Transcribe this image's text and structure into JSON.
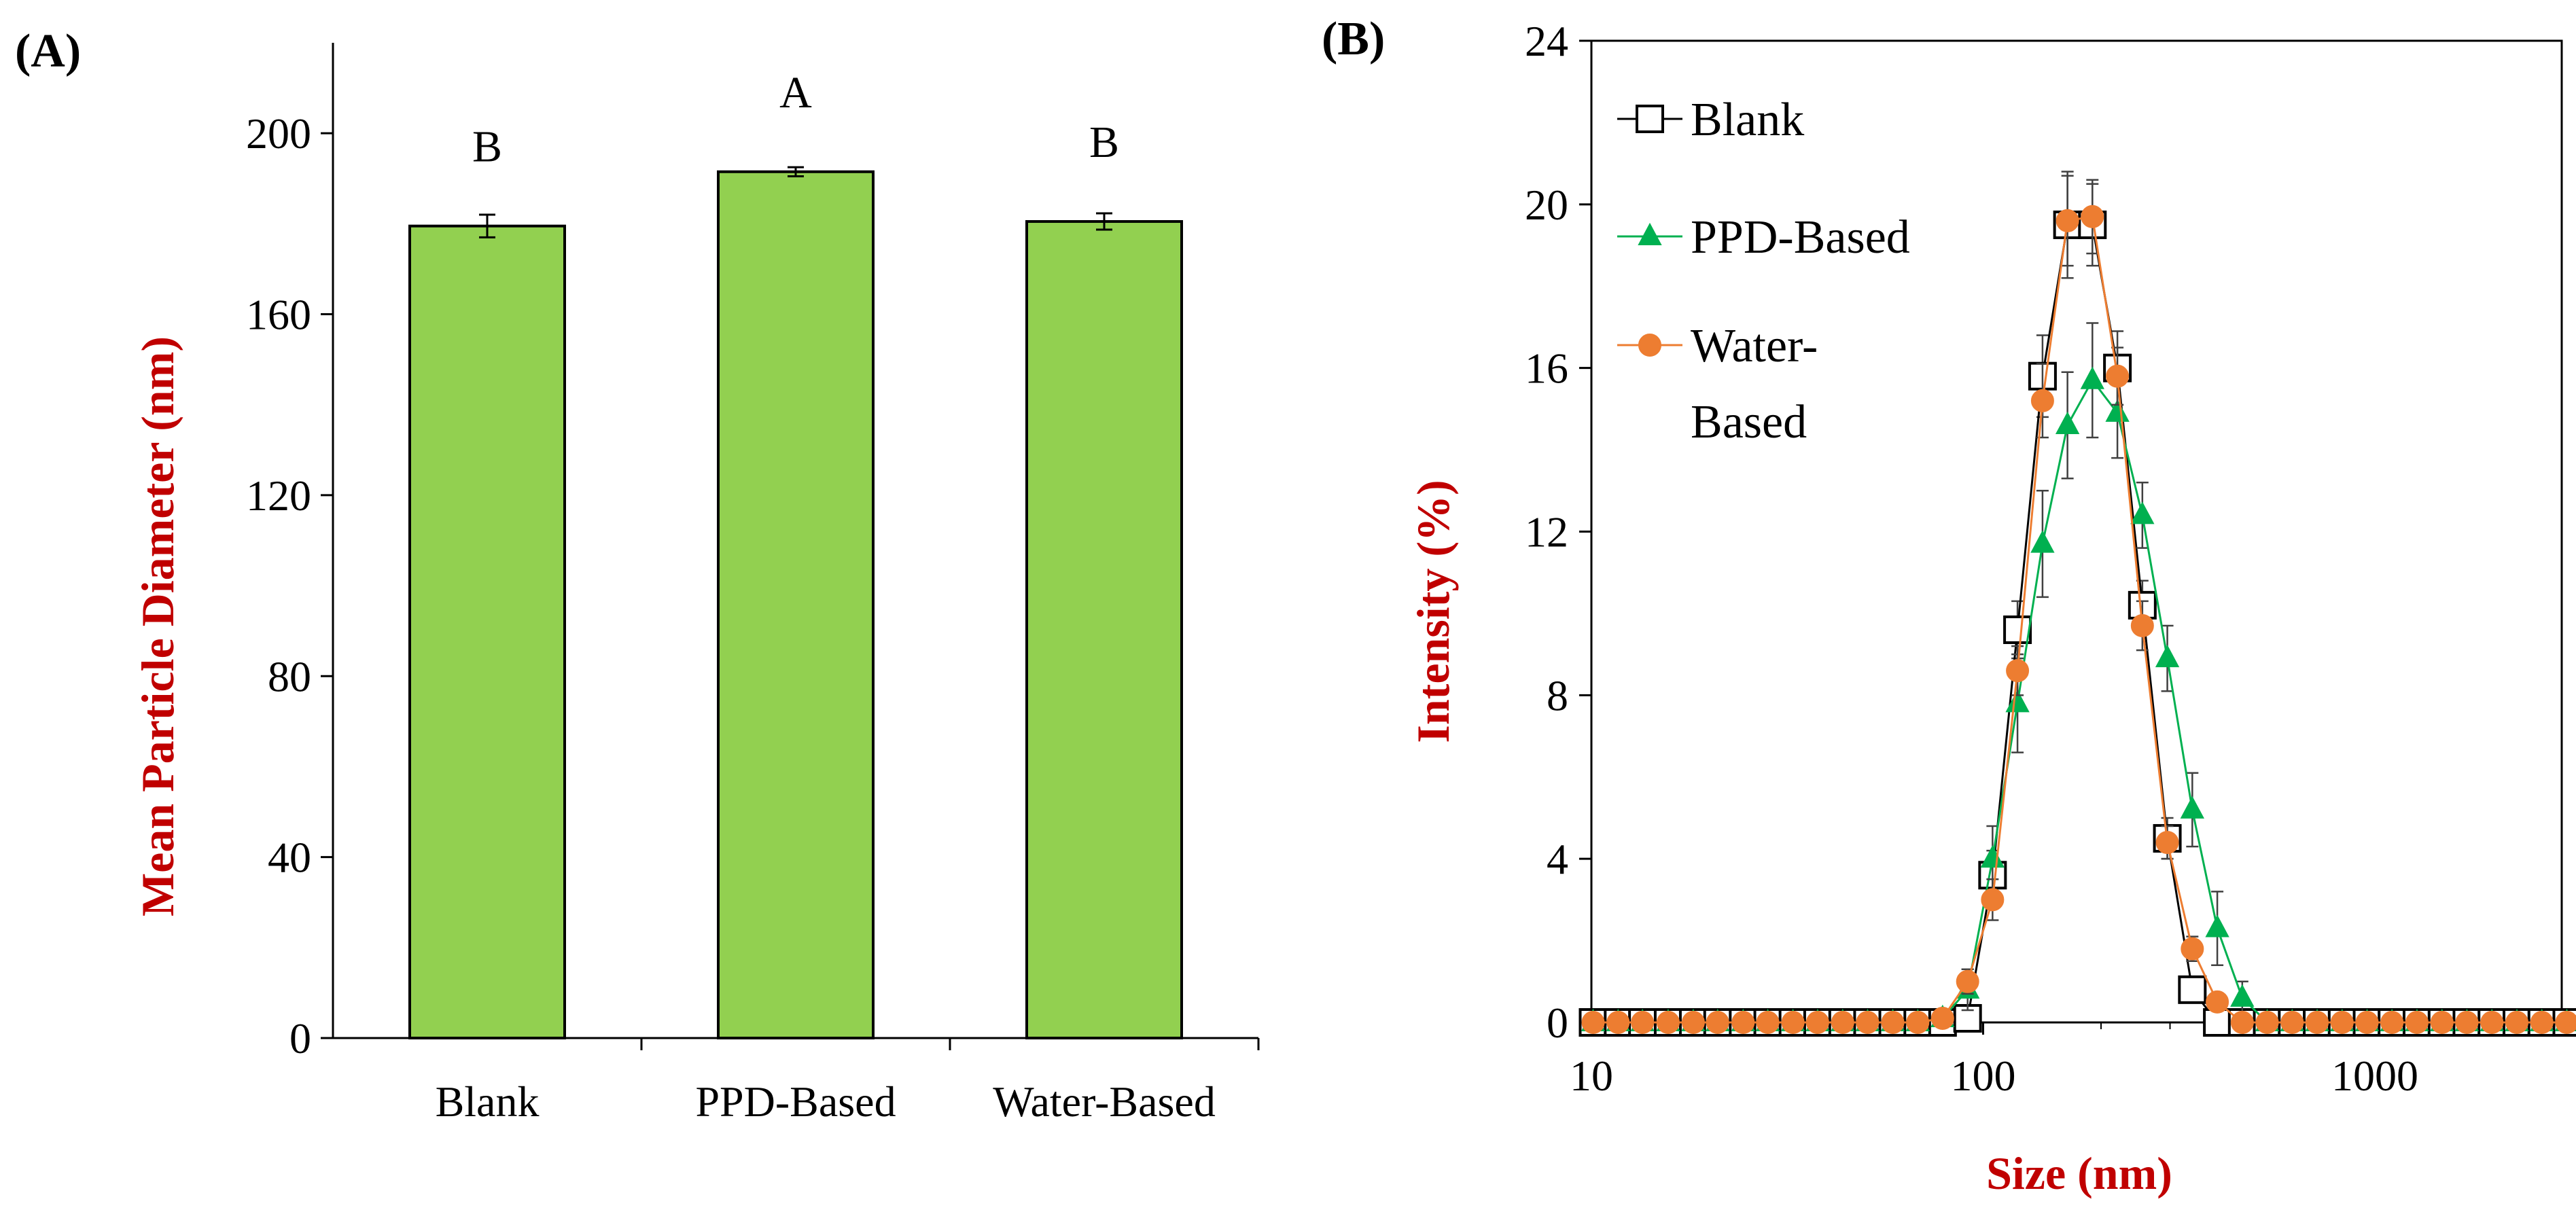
{
  "colors": {
    "bar_fill": "#92D050",
    "axis_title": "#C00000",
    "blank": "#000000",
    "ppd": "#00B050",
    "water": "#ED7D31",
    "errorbar": "#404040"
  },
  "chart_data": [
    {
      "panel_label": "(A)",
      "type": "bar",
      "title": "",
      "xlabel": "",
      "ylabel": "Mean Particle Diameter (nm)",
      "ylim": [
        0,
        220
      ],
      "yticks": [
        0,
        40,
        80,
        120,
        160,
        200
      ],
      "categories": [
        "Blank",
        "PPD-Based",
        "Water-Based"
      ],
      "values": [
        179.5,
        191.5,
        180.5
      ],
      "errors": [
        2.5,
        1.0,
        1.8
      ],
      "significance_letters": [
        "B",
        "A",
        "B"
      ]
    },
    {
      "panel_label": "(B)",
      "type": "line",
      "title": "",
      "xlabel": "Size (nm)",
      "ylabel": "Intensity (%)",
      "xscale": "log",
      "xlim": [
        10,
        3000
      ],
      "ylim": [
        0,
        24
      ],
      "xticks": [
        10,
        100,
        1000
      ],
      "xtick_labels": [
        "10",
        "100",
        "1000"
      ],
      "yticks": [
        0,
        4,
        8,
        12,
        16,
        20,
        24
      ],
      "legend_position": "top-left",
      "x": [
        10.1,
        11.7,
        13.5,
        15.7,
        18.2,
        21.0,
        24.4,
        28.2,
        32.7,
        37.8,
        43.8,
        50.7,
        58.8,
        68.1,
        78.8,
        91.3,
        105.7,
        122.4,
        141.8,
        164.2,
        190.1,
        220.2,
        255.0,
        295.3,
        342.0,
        396.1,
        458.7,
        531.2,
        615.1,
        712.4,
        825.0,
        955.4,
        1106.0,
        1281.0,
        1484.0,
        1718.0,
        1990.0,
        2305.0,
        2669.0,
        3091.0
      ],
      "series": [
        {
          "name": "Blank",
          "marker": "open-square",
          "values": [
            0,
            0,
            0,
            0,
            0,
            0,
            0,
            0,
            0,
            0,
            0,
            0,
            0,
            0,
            0,
            0.1,
            3.6,
            9.6,
            15.8,
            19.5,
            19.5,
            16.0,
            10.2,
            4.5,
            0.8,
            0,
            0,
            0,
            0,
            0,
            0,
            0,
            0,
            0,
            0,
            0,
            0,
            0,
            0,
            0
          ],
          "errors": [
            0,
            0,
            0,
            0,
            0,
            0,
            0,
            0,
            0,
            0,
            0,
            0,
            0,
            0,
            0,
            0.2,
            0.6,
            0.7,
            1.0,
            1.3,
            1.0,
            0.9,
            0.6,
            0.5,
            0.3,
            0,
            0,
            0,
            0,
            0,
            0,
            0,
            0,
            0,
            0,
            0,
            0,
            0,
            0,
            0
          ]
        },
        {
          "name": "PPD-Based",
          "marker": "filled-triangle",
          "values": [
            0,
            0,
            0,
            0,
            0,
            0,
            0,
            0,
            0,
            0,
            0,
            0,
            0,
            0,
            0.1,
            0.8,
            4.0,
            7.8,
            11.7,
            14.6,
            15.7,
            14.9,
            12.4,
            8.9,
            5.2,
            2.3,
            0.6,
            0,
            0,
            0,
            0,
            0,
            0,
            0,
            0,
            0,
            0,
            0,
            0,
            0
          ],
          "errors": [
            0,
            0,
            0,
            0,
            0,
            0,
            0,
            0,
            0,
            0,
            0,
            0,
            0,
            0,
            0.2,
            0.5,
            0.8,
            1.2,
            1.3,
            1.3,
            1.4,
            1.1,
            0.8,
            0.8,
            0.9,
            0.9,
            0.4,
            0,
            0,
            0,
            0,
            0,
            0,
            0,
            0,
            0,
            0,
            0,
            0,
            0
          ]
        },
        {
          "name": "Water-Based",
          "legend_lines": [
            "Water-",
            "Based"
          ],
          "marker": "filled-circle",
          "values": [
            0,
            0,
            0,
            0,
            0,
            0,
            0,
            0,
            0,
            0,
            0,
            0,
            0,
            0,
            0.1,
            1.0,
            3.0,
            8.6,
            15.2,
            19.6,
            19.7,
            15.8,
            9.7,
            4.4,
            1.8,
            0.5,
            0,
            0,
            0,
            0,
            0,
            0,
            0,
            0,
            0,
            0,
            0,
            0,
            0,
            0
          ],
          "errors": [
            0,
            0,
            0,
            0,
            0,
            0,
            0,
            0,
            0,
            0,
            0,
            0,
            0,
            0,
            0.1,
            0.3,
            0.5,
            0.6,
            0.9,
            1.1,
            0.9,
            0.7,
            0.6,
            0.4,
            0.3,
            0.2,
            0,
            0,
            0,
            0,
            0,
            0,
            0,
            0,
            0,
            0,
            0,
            0,
            0,
            0
          ]
        }
      ]
    }
  ]
}
